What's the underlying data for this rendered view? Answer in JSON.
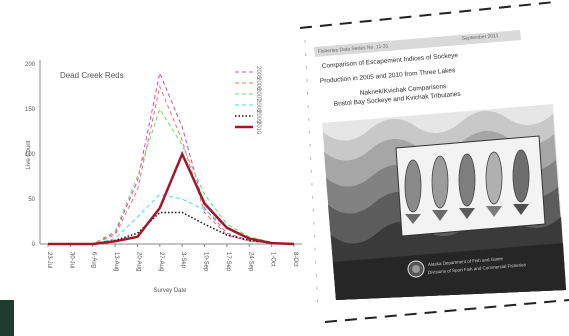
{
  "chart_data": {
    "type": "line",
    "title": "Dead Creek Reds",
    "xlabel": "Survey Date",
    "ylabel": "Live Count",
    "x": [
      "23-Jul",
      "30-Jul",
      "6-Aug",
      "13-Aug",
      "20-Aug",
      "27-Aug",
      "3-Sep",
      "10-Sep",
      "17-Sep",
      "24-Sep",
      "1-Oct",
      "8-Oct"
    ],
    "yticks": [
      "0",
      "50",
      "100",
      "150",
      "200"
    ],
    "ylim": [
      0,
      200
    ],
    "grid": false,
    "legend_position": "top-right",
    "series": [
      {
        "name": "2005",
        "color": "#e040c0",
        "style": "dashed",
        "width": 1,
        "values": [
          0,
          0,
          0,
          12,
          70,
          190,
          130,
          40,
          12,
          4,
          1,
          0
        ]
      },
      {
        "name": "2006",
        "color": "#ff6b6b",
        "style": "dashed",
        "width": 1,
        "values": [
          0,
          0,
          0,
          10,
          60,
          175,
          115,
          35,
          10,
          3,
          1,
          0
        ]
      },
      {
        "name": "2007",
        "color": "#66dd66",
        "style": "dashed",
        "width": 1,
        "values": [
          0,
          0,
          0,
          14,
          75,
          150,
          110,
          55,
          22,
          8,
          2,
          0
        ]
      },
      {
        "name": "2008",
        "color": "#44dddd",
        "style": "dashed",
        "width": 1,
        "values": [
          0,
          0,
          0,
          6,
          30,
          55,
          50,
          38,
          18,
          6,
          1,
          0
        ]
      },
      {
        "name": "2009",
        "color": "#111111",
        "style": "dotted",
        "width": 1.5,
        "values": [
          0,
          0,
          0,
          4,
          12,
          35,
          35,
          22,
          10,
          4,
          1,
          0
        ]
      },
      {
        "name": "2010",
        "color": "#a0182a",
        "style": "solid",
        "width": 2.5,
        "values": [
          0,
          0,
          0,
          3,
          8,
          40,
          100,
          45,
          18,
          6,
          1,
          0
        ]
      }
    ]
  },
  "document": {
    "header_left": "Fisheries Data Series No. 11-31",
    "header_right": "September 2011",
    "title_lines": [
      "Comparison of Escapement Indices of Sockeye",
      "Production in 2005 and 2010 from Three Lakes",
      "Naknek/Kvichak Comparisons",
      "Bristol Bay Sockeye and Kvichak Tributaries"
    ],
    "footer_lines": [
      "Alaska Department of Fish and Game",
      "Divisions of Sport Fish and Commercial Fisheries"
    ]
  }
}
